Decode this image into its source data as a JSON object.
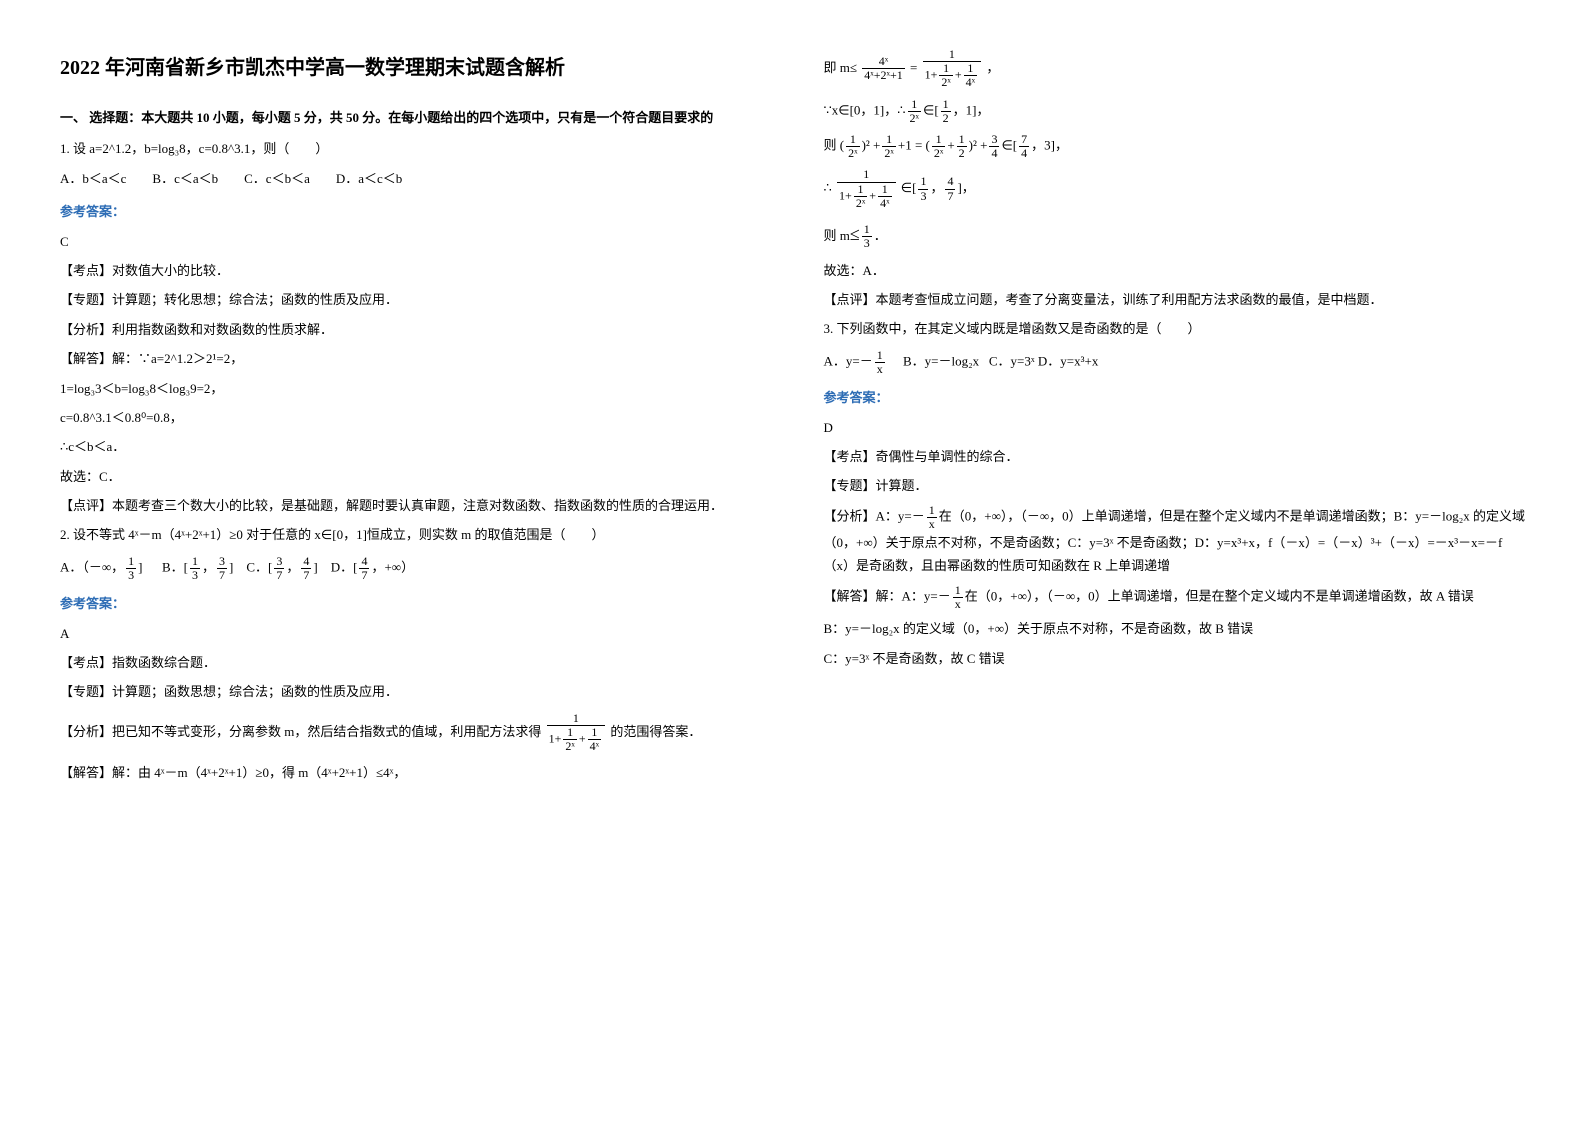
{
  "title": "2022 年河南省新乡市凯杰中学高一数学理期末试题含解析",
  "section1_heading": "一、 选择题：本大题共 10 小题，每小题 5 分，共 50 分。在每小题给出的四个选项中，只有是一个符合题目要求的",
  "q1": {
    "stem": "1. 设 a=2^1.2，b=log₃8，c=0.8^3.1，则（　　）",
    "opts": "A．b＜a＜c　　B．c＜a＜b　　C．c＜b＜a　　D．a＜c＜b",
    "ans_label": "参考答案：",
    "ans": "C",
    "kd_label": "【考点】",
    "kd": "对数值大小的比较．",
    "zt_label": "【专题】",
    "zt": "计算题；转化思想；综合法；函数的性质及应用．",
    "fx_label": "【分析】",
    "fx": "利用指数函数和对数函数的性质求解．",
    "jd_label": "【解答】",
    "jd1": "解：∵a=2^1.2＞2¹=2，",
    "jd2": "1=log₃3＜b=log₃8＜log₃9=2，",
    "jd3": "c=0.8^3.1＜0.8⁰=0.8，",
    "jd4": "∴c＜b＜a．",
    "jd5": "故选：C．",
    "dp_label": "【点评】",
    "dp": "本题考查三个数大小的比较，是基础题，解题时要认真审题，注意对数函数、指数函数的性质的合理运用．"
  },
  "q2": {
    "stem": "2. 设不等式 4ˣ－m（4ˣ+2ˣ+1）≥0 对于任意的 x∈[0，1]恒成立，则实数 m 的取值范围是（　　）",
    "optA_pre": "A．（－∞，",
    "optA_post": "]",
    "optB_pre": "B．[",
    "optB_mid": "，",
    "optB_post": "]",
    "optC_pre": "C．[",
    "optC_mid": "，",
    "optC_post": "]",
    "optD_pre": "D．[",
    "optD_post": "，+∞）",
    "ans_label": "参考答案：",
    "ans": "A",
    "kd_label": "【考点】",
    "kd": "指数函数综合题．",
    "zt_label": "【专题】",
    "zt": "计算题；函数思想；综合法；函数的性质及应用．",
    "fx_label": "【分析】",
    "fx_pre": "把已知不等式变形，分离参数 m，然后结合指数式的值域，利用配方法求得",
    "fx_post": "的范围得答案．",
    "jd_label": "【解答】",
    "jd1": "解：由 4ˣ－m（4ˣ+2ˣ+1）≥0，得 m（4ˣ+2ˣ+1）≤4ˣ，",
    "right_line1_pre": "即 m≤",
    "right_line1_mid": "=",
    "right_line1_post": "，",
    "right_line2_pre": "∵x∈[0，1]，∴",
    "right_line2_mid": "∈[",
    "right_line2_post": "，1]，",
    "right_line3_pre": "则",
    "right_line3a": "(",
    "right_line3b": ")² +",
    "right_line3c": "+1 = (",
    "right_line3d": "+",
    "right_line3e": ")² +",
    "right_line3f": "∈[",
    "right_line3g": "，3]，",
    "right_line4_pre": "∴",
    "right_line4_mid": "∈[",
    "right_line4_sep": "，",
    "right_line4_post": "]，",
    "right_line5_pre": "则 m",
    "right_line5_post": "．",
    "right_line6": "故选：A．",
    "dp_label": "【点评】",
    "dp": "本题考查恒成立问题，考查了分离变量法，训练了利用配方法求函数的最值，是中档题．"
  },
  "q3": {
    "stem": "3. 下列函数中，在其定义域内既是增函数又是奇函数的是（　　）",
    "optA_pre": "A．",
    "optA_y": "y=－",
    "optB": "B．y=－log₂x",
    "optC": "C．y=3ˣ",
    "optD": "D．y=x³+x",
    "ans_label": "参考答案：",
    "ans": "D",
    "kd_label": "【考点】",
    "kd": "奇偶性与单调性的综合．",
    "zt_label": "【专题】",
    "zt": "计算题．",
    "fx_label": "【分析】",
    "fx_a_pre": "A：y=－",
    "fx_a_post": "在（0，+∞），（－∞，0）上单调递增，但是在整个定义域内不是单调递增函数；B：y=－log₂x 的定义域（0，+∞）关于原点不对称，不是奇函数；C：y=3ˣ 不是奇函数；D：y=x³+x，f（－x）=（－x）³+（－x）=－x³－x=－f（x）是奇函数，且由幂函数的性质可知函数在 R 上单调递增",
    "jd_label": "【解答】",
    "jd_a_pre": "解：A：y=－",
    "jd_a_post": "在（0，+∞），（－∞，0）上单调递增，但是在整个定义域内不是单调递增函数，故 A 错误",
    "jd_b": "B：y=－log₂x 的定义域（0，+∞）关于原点不对称，不是奇函数，故 B 错误",
    "jd_c": "C：y=3ˣ 不是奇函数，故 C 错误"
  },
  "fracs": {
    "one": "1",
    "two": "2",
    "three": "3",
    "four": "4",
    "seven": "7",
    "half_num": "1",
    "half_den": "2",
    "third_num": "1",
    "third_den": "3",
    "threesev_num": "3",
    "threesev_den": "7",
    "foursev_num": "4",
    "foursev_den": "7",
    "onex_num": "1",
    "onex_den": "x",
    "two_x": "2ˣ",
    "four_x": "4ˣ",
    "le": "≤"
  },
  "colors": {
    "text": "#000000",
    "accent": "#2e6db5",
    "bg": "#ffffff"
  },
  "fonts": {
    "body_size_pt": 10,
    "title_pt": 15,
    "family": "SimSun"
  }
}
